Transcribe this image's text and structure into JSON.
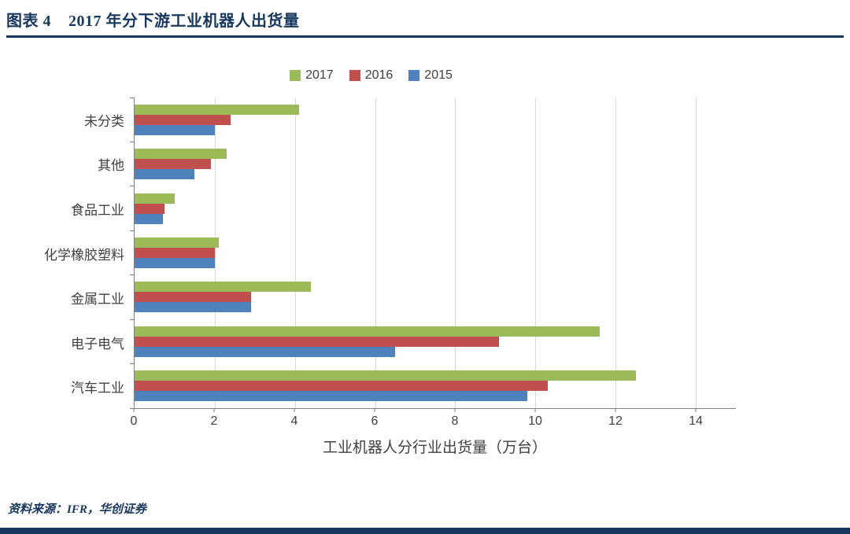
{
  "header": {
    "title": "图表 4    2017 年分下游工业机器人出货量"
  },
  "footer": {
    "source": "资料来源：IFR，华创证券"
  },
  "colors": {
    "accent_navy": "#17375E",
    "grid": "#D9D9D9",
    "axis": "#7f7f7f",
    "text": "#404040",
    "series_2017": "#9BBB59",
    "series_2016": "#C0504D",
    "series_2015": "#4F81BD"
  },
  "chart_data": {
    "type": "bar",
    "orientation": "horizontal",
    "title": "2017 年分下游工业机器人出货量",
    "xlabel": "工业机器人分行业出货量（万台）",
    "ylabel": "",
    "xlim": [
      0,
      14
    ],
    "xticks": [
      0,
      2,
      4,
      6,
      8,
      10,
      12,
      14
    ],
    "grid": true,
    "legend_position": "top-center",
    "categories_top_to_bottom": [
      "未分类",
      "其他",
      "食品工业",
      "化学橡胶塑料",
      "金属工业",
      "电子电气",
      "汽车工业"
    ],
    "series": [
      {
        "name": "2017",
        "color": "#9BBB59",
        "values": [
          4.1,
          2.3,
          1.0,
          2.1,
          4.4,
          11.6,
          12.5
        ]
      },
      {
        "name": "2016",
        "color": "#C0504D",
        "values": [
          2.4,
          1.9,
          0.75,
          2.0,
          2.9,
          9.1,
          10.3
        ]
      },
      {
        "name": "2015",
        "color": "#4F81BD",
        "values": [
          2.0,
          1.5,
          0.7,
          2.0,
          2.9,
          6.5,
          9.8
        ]
      }
    ]
  }
}
